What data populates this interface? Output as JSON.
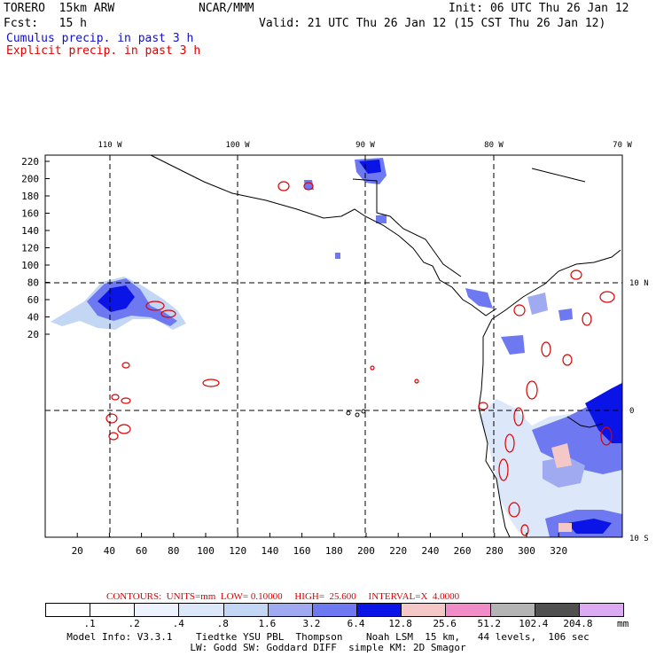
{
  "header": {
    "model": "TORERO  15km ARW",
    "center": "NCAR/MMM",
    "init": "Init: 06 UTC Thu 26 Jan 12",
    "fcst": "Fcst:   15 h",
    "valid": "Valid: 21 UTC Thu 26 Jan 12 (15 CST Thu 26 Jan 12)",
    "field1": "Cumulus precip. in past 3 h",
    "field2": "Explicit precip. in past 3 h"
  },
  "map": {
    "lon_labels": [
      "110 W",
      "100 W",
      "90 W",
      "80 W",
      "70 W"
    ],
    "lat_labels": [
      "10 N",
      "0",
      "10 S"
    ],
    "x_ticks": [
      "20",
      "40",
      "60",
      "80",
      "100",
      "120",
      "140",
      "160",
      "180",
      "200",
      "220",
      "240",
      "260",
      "280",
      "300",
      "320"
    ],
    "y_ticks": [
      "220",
      "200",
      "180",
      "160",
      "140",
      "120",
      "100",
      "80",
      "60",
      "40",
      "20"
    ]
  },
  "contours_line": "CONTOURS:  UNITS=mm  LOW= 0.10000     HIGH=  25.600     INTERVAL=X  4.0000",
  "colorbar": {
    "labels": [
      ".1",
      ".2",
      ".4",
      ".8",
      "1.6",
      "3.2",
      "6.4",
      "12.8",
      "25.6",
      "51.2",
      "102.4",
      "204.8"
    ],
    "unit": "mm",
    "colors": [
      "#ffffff",
      "#ffffff",
      "#ecf3ff",
      "#dce8fa",
      "#c3d7f5",
      "#a0aaf0",
      "#6e78f0",
      "#0a14e6",
      "#f5c8c8",
      "#f08cc8",
      "#b4b4b4",
      "#505050",
      "#dcaaf0"
    ]
  },
  "footer": {
    "line1": "Model Info: V3.3.1    Tiedtke YSU PBL  Thompson    Noah LSM  15 km,   44 levels,  106 sec",
    "line2": "LW: Godd SW: Goddard DIFF  simple KM: 2D Smagor"
  }
}
